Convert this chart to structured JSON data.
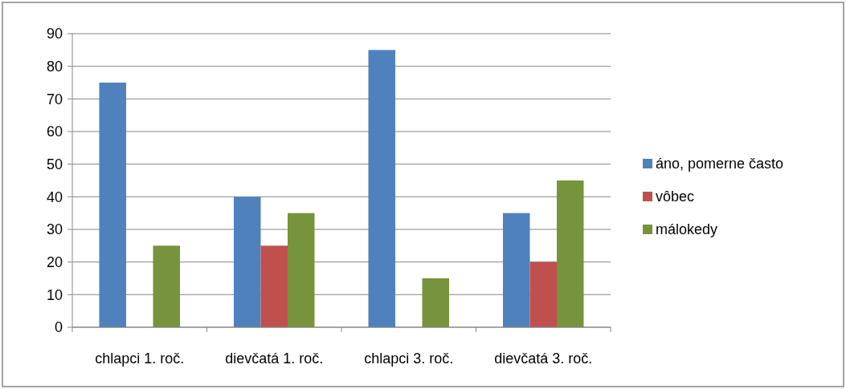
{
  "chart_data": {
    "type": "bar",
    "categories": [
      "chlapci 1. roč.",
      "dievčatá 1. roč.",
      "chlapci 3. roč.",
      "dievčatá 3. roč."
    ],
    "series": [
      {
        "name": "áno, pomerne často",
        "color": "#4f81bd",
        "values": [
          75,
          40,
          85,
          35
        ]
      },
      {
        "name": "vôbec",
        "color": "#c0504d",
        "values": [
          0,
          25,
          0,
          20
        ]
      },
      {
        "name": "málokedy",
        "color": "#77933c",
        "values": [
          25,
          35,
          15,
          45
        ]
      }
    ],
    "ylim": [
      0,
      90
    ],
    "yticks": [
      0,
      10,
      20,
      30,
      40,
      50,
      60,
      70,
      80,
      90
    ],
    "grid": "y",
    "legend": "right"
  }
}
